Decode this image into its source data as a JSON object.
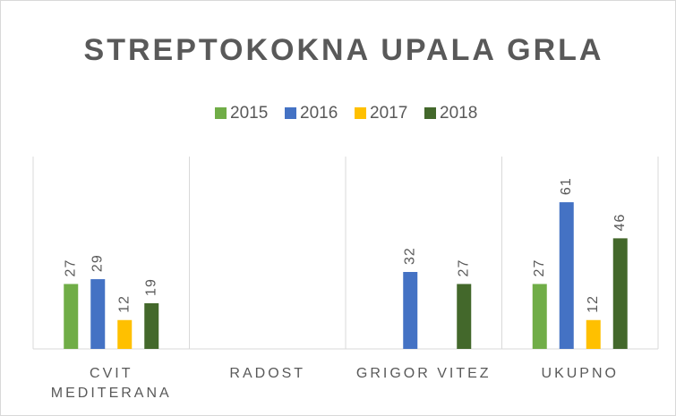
{
  "chart_data": {
    "type": "bar",
    "title": "STREPTOKOKNA UPALA GRLA",
    "categories": [
      "CVIT MEDITERANA",
      "RADOST",
      "GRIGOR VITEZ",
      "UKUPNO"
    ],
    "series": [
      {
        "name": "2015",
        "color": "#70ad47",
        "values": [
          27,
          null,
          null,
          27
        ]
      },
      {
        "name": "2016",
        "color": "#4472c4",
        "values": [
          29,
          null,
          32,
          61
        ]
      },
      {
        "name": "2017",
        "color": "#ffc000",
        "values": [
          12,
          null,
          null,
          12
        ]
      },
      {
        "name": "2018",
        "color": "#43682b",
        "values": [
          19,
          null,
          27,
          46
        ]
      }
    ],
    "ylim": [
      0,
      80
    ],
    "legend": "top",
    "grid": false
  }
}
